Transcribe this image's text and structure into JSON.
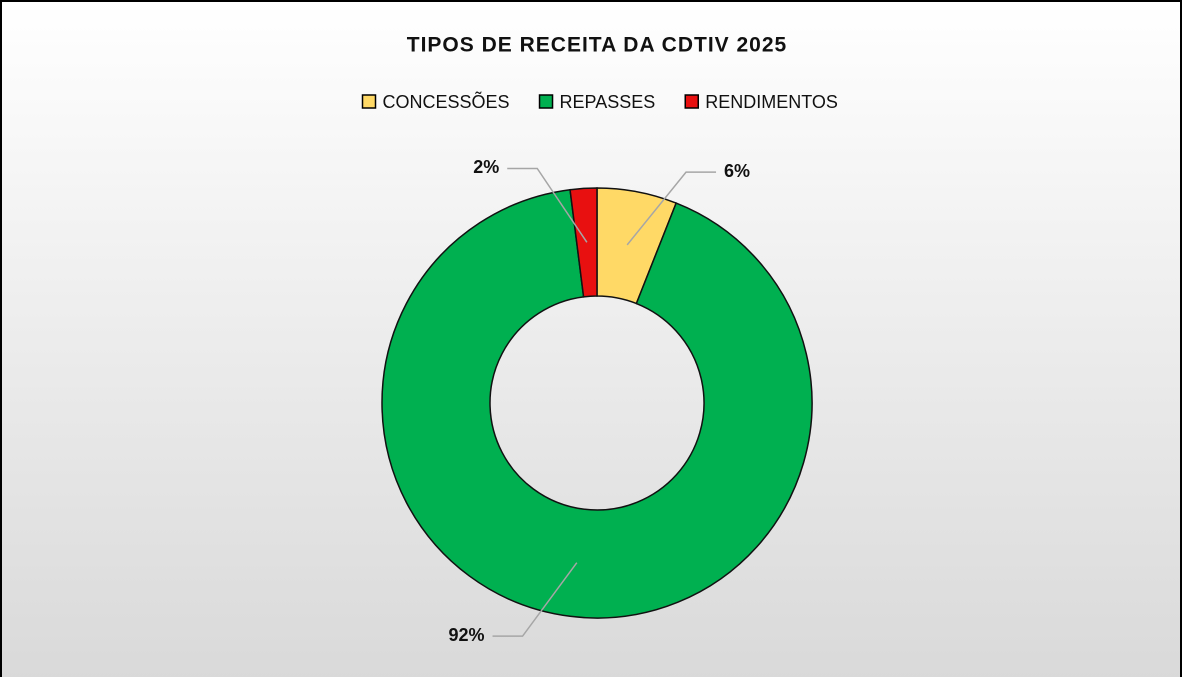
{
  "chart_data": {
    "type": "pie",
    "title": "TIPOS DE RECEITA DA CDTIV 2025",
    "categories": [
      "CONCESSÕES",
      "REPASSES",
      "RENDIMENTOS"
    ],
    "values": [
      6,
      92,
      2
    ],
    "value_labels": [
      "6%",
      "92%",
      "2%"
    ],
    "colors": [
      "#FFD966",
      "#00B050",
      "#E81010"
    ],
    "hole": true
  }
}
